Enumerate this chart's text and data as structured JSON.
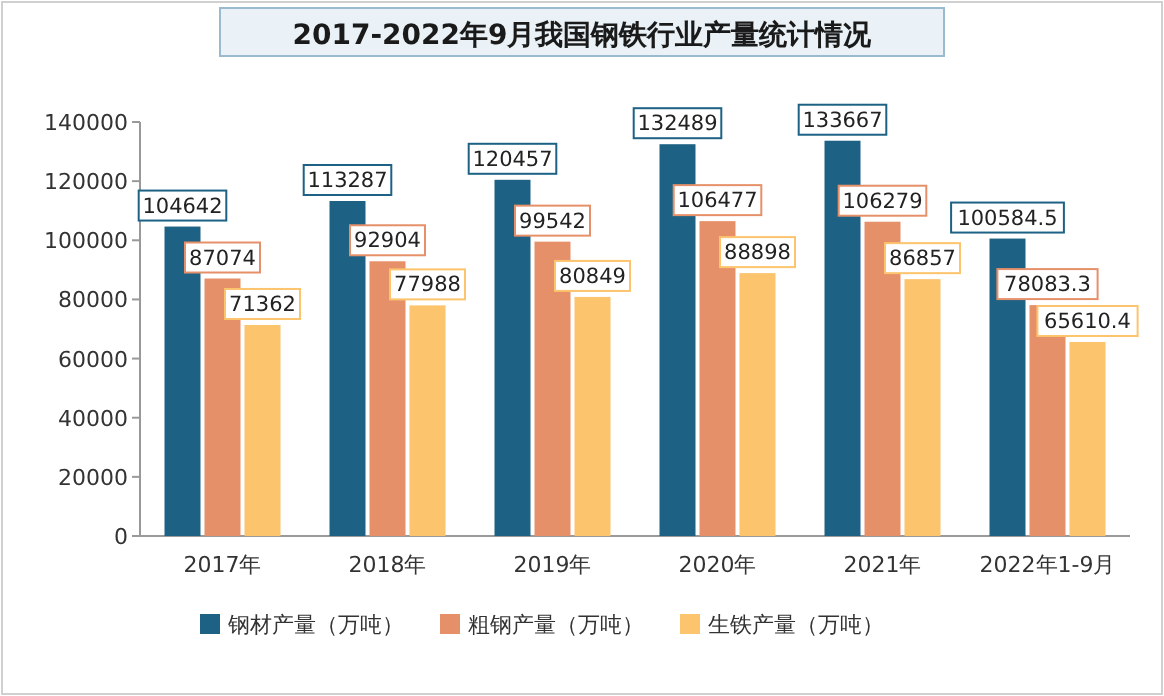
{
  "chart_data": {
    "type": "bar",
    "title": "2017-2022年9月我国钢铁行业产量统计情况",
    "categories": [
      "2017年",
      "2018年",
      "2019年",
      "2020年",
      "2021年",
      "2022年1-9月"
    ],
    "series": [
      {
        "name": "钢材产量（万吨）",
        "color": "#1d6285",
        "values": [
          104642,
          113287,
          120457,
          132489,
          133667,
          100584.5
        ]
      },
      {
        "name": "粗钢产量（万吨）",
        "color": "#e6906a",
        "values": [
          87074,
          92904,
          99542,
          106477,
          106279,
          78083.3
        ]
      },
      {
        "name": "生铁产量（万吨）",
        "color": "#fcc46c",
        "values": [
          71362,
          77988,
          80849,
          88898,
          86857,
          65610.4
        ]
      }
    ],
    "ylim": [
      0,
      140000
    ],
    "yticks": [
      0,
      20000,
      40000,
      60000,
      80000,
      100000,
      120000,
      140000
    ],
    "data_labels": true,
    "legend": "bottom",
    "grid": false
  }
}
